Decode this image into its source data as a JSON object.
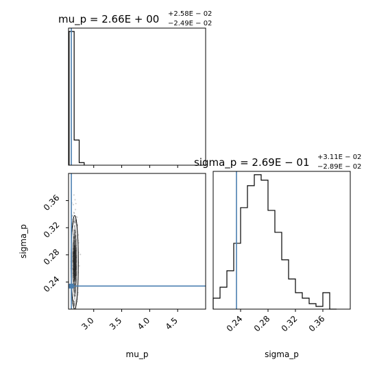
{
  "chart_data": [
    {
      "type": "histogram",
      "panel": "mu_p marginal",
      "title_main": "mu_p = 2.66E + 00",
      "title_sup": "+2.58E − 02",
      "title_sub": "−2.49E − 02",
      "xlim": [
        2.55,
        5.0
      ],
      "bin_edges": [
        2.56,
        2.65,
        2.74,
        2.83
      ],
      "counts": [
        520,
        98,
        10
      ],
      "truth_value": 2.6,
      "truth_color": "#4a7fb0"
    },
    {
      "type": "histogram",
      "panel": "sigma_p marginal",
      "title_main": "sigma_p = 2.69E − 01",
      "title_sup": "+3.11E − 02",
      "title_sub": "−2.89E − 02",
      "xlim": [
        0.2,
        0.4
      ],
      "xticks": [
        "0.24",
        "0.28",
        "0.32",
        "0.36"
      ],
      "xlabel": "sigma_p",
      "bin_edges": [
        0.2,
        0.21,
        0.22,
        0.23,
        0.24,
        0.25,
        0.26,
        0.27,
        0.28,
        0.29,
        0.3,
        0.31,
        0.32,
        0.33,
        0.34,
        0.35,
        0.36,
        0.37,
        0.38
      ],
      "counts": [
        4,
        8,
        14,
        24,
        37,
        45,
        49,
        47,
        36,
        28,
        18,
        11,
        6,
        4,
        2,
        1,
        6,
        0
      ],
      "truth_value": 0.234,
      "truth_color": "#4a7fb0"
    },
    {
      "type": "scatter",
      "panel": "joint mu_p vs sigma_p",
      "xlim": [
        2.55,
        5.0
      ],
      "ylim": [
        0.2,
        0.4
      ],
      "xticks": [
        "3.0",
        "3.5",
        "4.0",
        "4.5"
      ],
      "yticks": [
        "0.24",
        "0.28",
        "0.32",
        "0.36"
      ],
      "xlabel": "mu_p",
      "ylabel": "sigma_p",
      "cloud_center_x": 2.66,
      "cloud_center_y": 0.269,
      "cloud_sd_x": 0.026,
      "cloud_sd_y": 0.03,
      "truth_x": 2.6,
      "truth_y": 0.234,
      "truth_color": "#4a7fb0"
    }
  ]
}
